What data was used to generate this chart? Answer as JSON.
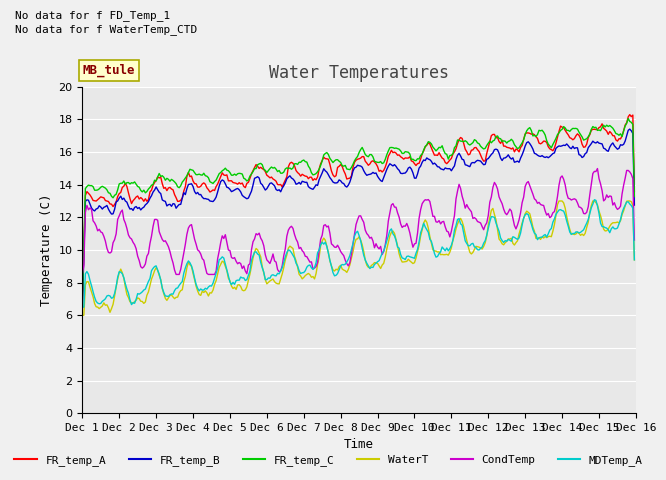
{
  "title": "Water Temperatures",
  "xlabel": "Time",
  "ylabel": "Temperature (C)",
  "ylim": [
    0,
    20
  ],
  "yticks": [
    0,
    2,
    4,
    6,
    8,
    10,
    12,
    14,
    16,
    18,
    20
  ],
  "bg_color": "#e8e8e8",
  "fig_bg_color": "#f0f0f0",
  "text_annotations": [
    "No data for f FD_Temp_1",
    "No data for f WaterTemp_CTD"
  ],
  "box_label": "MB_tule",
  "series_colors": {
    "FR_temp_A": "#ff0000",
    "FR_temp_B": "#0000cc",
    "FR_temp_C": "#00cc00",
    "WaterT": "#cccc00",
    "CondTemp": "#cc00cc",
    "MDTemp_A": "#00cccc"
  },
  "legend_labels": [
    "FR_temp_A",
    "FR_temp_B",
    "FR_temp_C",
    "WaterT",
    "CondTemp",
    "MDTemp_A"
  ],
  "n_points": 360,
  "x_tick_labels": [
    "Dec 1",
    "Dec 2",
    "Dec 3",
    "Dec 4",
    "Dec 5",
    "Dec 6",
    "Dec 7",
    "Dec 8",
    "Dec 9",
    "Dec 10",
    "Dec 11",
    "Dec 12",
    "Dec 13",
    "Dec 14",
    "Dec 15",
    "Dec 16"
  ],
  "x_tick_positions": [
    0,
    24,
    48,
    72,
    96,
    120,
    144,
    168,
    192,
    216,
    240,
    264,
    288,
    312,
    336,
    360
  ],
  "title_fontsize": 12,
  "axis_fontsize": 8,
  "legend_fontsize": 8,
  "annotation_fontsize": 8
}
